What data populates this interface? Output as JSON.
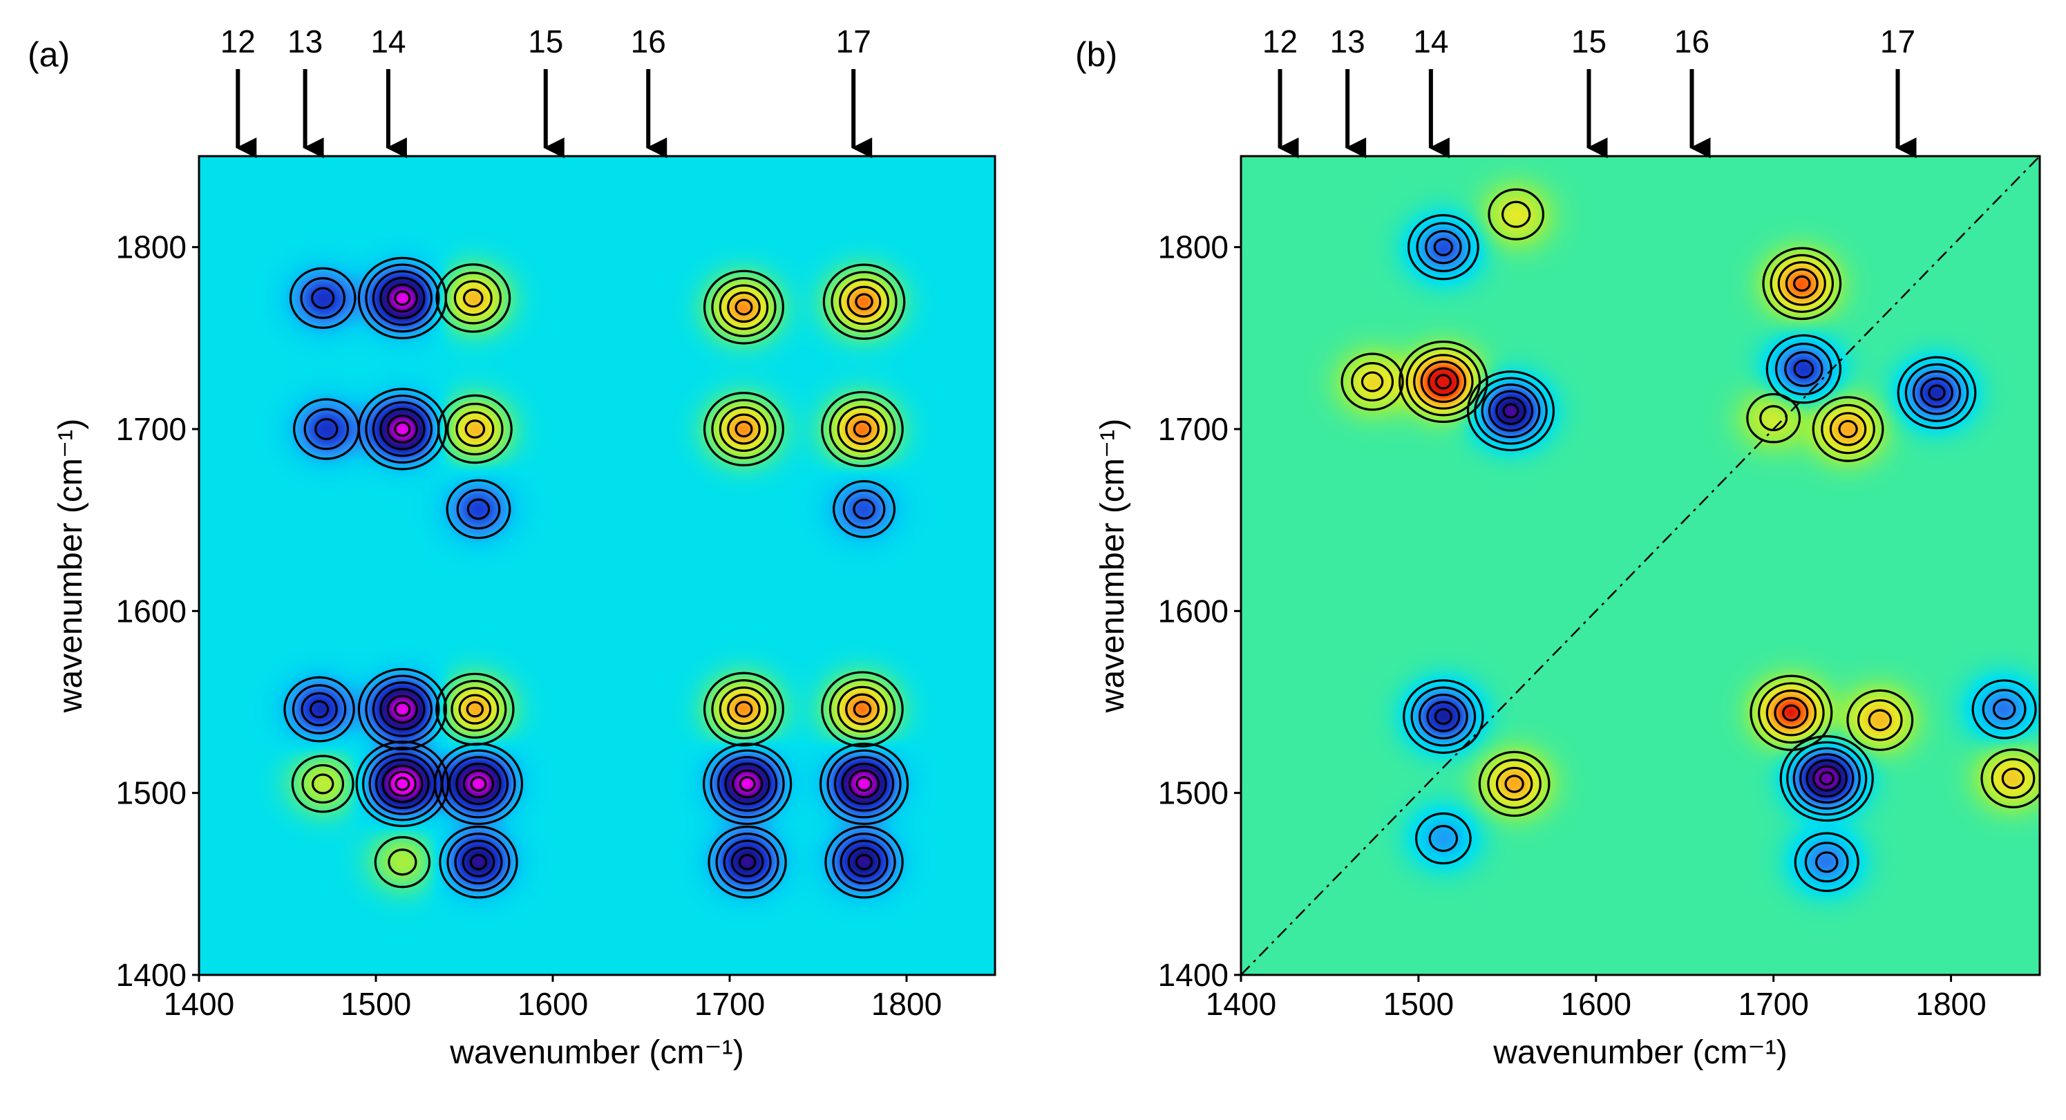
{
  "chart_data": [
    {
      "type": "heatmap",
      "panel_label": "(a)",
      "subtype": "2D correlation contour map (synchronous)",
      "xlabel": "wavenumber (cm⁻¹)",
      "ylabel": "wavenumber (cm⁻¹)",
      "xlim": [
        1400,
        1850
      ],
      "ylim": [
        1400,
        1850
      ],
      "xticks": [
        1400,
        1500,
        1600,
        1700,
        1800
      ],
      "yticks": [
        1400,
        1500,
        1600,
        1700,
        1800
      ],
      "peak_markers": [
        {
          "label": "12",
          "x": 1422
        },
        {
          "label": "13",
          "x": 1460
        },
        {
          "label": "14",
          "x": 1507
        },
        {
          "label": "15",
          "x": 1596
        },
        {
          "label": "16",
          "x": 1654
        },
        {
          "label": "17",
          "x": 1770
        }
      ],
      "blobs": [
        {
          "x": 1515,
          "y": 1772,
          "sign": -1,
          "amp": 1.0
        },
        {
          "x": 1470,
          "y": 1772,
          "sign": -1,
          "amp": 0.55
        },
        {
          "x": 1555,
          "y": 1772,
          "sign": 1,
          "amp": 0.7
        },
        {
          "x": 1708,
          "y": 1767,
          "sign": 1,
          "amp": 0.8
        },
        {
          "x": 1776,
          "y": 1770,
          "sign": 1,
          "amp": 0.85
        },
        {
          "x": 1515,
          "y": 1700,
          "sign": -1,
          "amp": 1.0
        },
        {
          "x": 1472,
          "y": 1700,
          "sign": -1,
          "amp": 0.55
        },
        {
          "x": 1556,
          "y": 1700,
          "sign": 1,
          "amp": 0.7
        },
        {
          "x": 1708,
          "y": 1700,
          "sign": 1,
          "amp": 0.8
        },
        {
          "x": 1775,
          "y": 1700,
          "sign": 1,
          "amp": 0.85
        },
        {
          "x": 1515,
          "y": 1546,
          "sign": -1,
          "amp": 1.0
        },
        {
          "x": 1468,
          "y": 1546,
          "sign": -1,
          "amp": 0.6
        },
        {
          "x": 1556,
          "y": 1546,
          "sign": 1,
          "amp": 0.75
        },
        {
          "x": 1708,
          "y": 1546,
          "sign": 1,
          "amp": 0.8
        },
        {
          "x": 1775,
          "y": 1546,
          "sign": 1,
          "amp": 0.85
        },
        {
          "x": 1515,
          "y": 1505,
          "sign": -1,
          "amp": 1.1
        },
        {
          "x": 1558,
          "y": 1505,
          "sign": -1,
          "amp": 1.0
        },
        {
          "x": 1710,
          "y": 1505,
          "sign": -1,
          "amp": 1.0
        },
        {
          "x": 1776,
          "y": 1505,
          "sign": -1,
          "amp": 1.0
        },
        {
          "x": 1558,
          "y": 1462,
          "sign": -1,
          "amp": 0.75
        },
        {
          "x": 1710,
          "y": 1462,
          "sign": -1,
          "amp": 0.75
        },
        {
          "x": 1776,
          "y": 1462,
          "sign": -1,
          "amp": 0.75
        },
        {
          "x": 1558,
          "y": 1656,
          "sign": -1,
          "amp": 0.5
        },
        {
          "x": 1776,
          "y": 1656,
          "sign": -1,
          "amp": 0.45
        },
        {
          "x": 1470,
          "y": 1505,
          "sign": 1,
          "amp": 0.45
        },
        {
          "x": 1515,
          "y": 1462,
          "sign": 1,
          "amp": 0.4
        }
      ]
    },
    {
      "type": "heatmap",
      "panel_label": "(b)",
      "subtype": "2D correlation contour map (asynchronous)",
      "xlabel": "wavenumber (cm⁻¹)",
      "ylabel": "wavenumber (cm⁻¹)",
      "xlim": [
        1400,
        1850
      ],
      "ylim": [
        1400,
        1850
      ],
      "xticks": [
        1400,
        1500,
        1600,
        1700,
        1800
      ],
      "yticks": [
        1400,
        1500,
        1600,
        1700,
        1800
      ],
      "diagonal": true,
      "peak_markers": [
        {
          "label": "12",
          "x": 1422
        },
        {
          "label": "13",
          "x": 1460
        },
        {
          "label": "14",
          "x": 1507
        },
        {
          "label": "15",
          "x": 1596
        },
        {
          "label": "16",
          "x": 1654
        },
        {
          "label": "17",
          "x": 1770
        }
      ],
      "blobs": [
        {
          "x": 1514,
          "y": 1726,
          "sign": 1,
          "amp": 1.0
        },
        {
          "x": 1552,
          "y": 1710,
          "sign": -1,
          "amp": 0.95
        },
        {
          "x": 1474,
          "y": 1726,
          "sign": 1,
          "amp": 0.45
        },
        {
          "x": 1514,
          "y": 1800,
          "sign": -1,
          "amp": 0.6
        },
        {
          "x": 1555,
          "y": 1818,
          "sign": 1,
          "amp": 0.4
        },
        {
          "x": 1716,
          "y": 1780,
          "sign": 1,
          "amp": 0.75
        },
        {
          "x": 1717,
          "y": 1733,
          "sign": -1,
          "amp": 0.7
        },
        {
          "x": 1742,
          "y": 1700,
          "sign": 1,
          "amp": 0.6
        },
        {
          "x": 1792,
          "y": 1720,
          "sign": -1,
          "amp": 0.75
        },
        {
          "x": 1700,
          "y": 1706,
          "sign": 1,
          "amp": 0.35
        },
        {
          "x": 1514,
          "y": 1542,
          "sign": -1,
          "amp": 0.8
        },
        {
          "x": 1554,
          "y": 1505,
          "sign": 1,
          "amp": 0.6
        },
        {
          "x": 1710,
          "y": 1544,
          "sign": 1,
          "amp": 0.85
        },
        {
          "x": 1760,
          "y": 1540,
          "sign": 1,
          "amp": 0.55
        },
        {
          "x": 1730,
          "y": 1508,
          "sign": -1,
          "amp": 1.1
        },
        {
          "x": 1730,
          "y": 1462,
          "sign": -1,
          "amp": 0.5
        },
        {
          "x": 1830,
          "y": 1546,
          "sign": -1,
          "amp": 0.5
        },
        {
          "x": 1835,
          "y": 1508,
          "sign": 1,
          "amp": 0.5
        },
        {
          "x": 1514,
          "y": 1475,
          "sign": -1,
          "amp": 0.4
        }
      ]
    }
  ],
  "colors": {
    "background": "#ffffff",
    "contour": "#000000",
    "axis": "#000000"
  }
}
